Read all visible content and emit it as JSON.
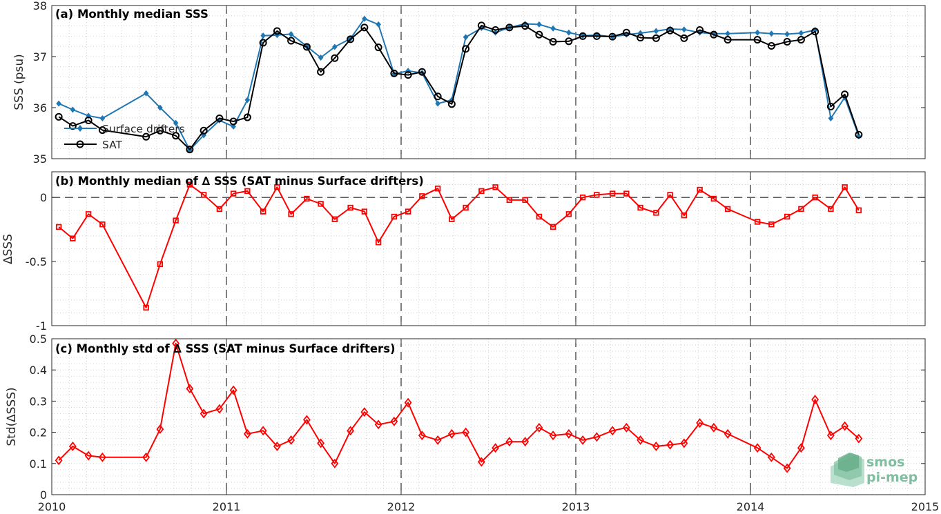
{
  "chart_data": [
    {
      "type": "line",
      "title": "(a) Monthly median SSS",
      "ylabel": "SSS (psu)",
      "xlim": [
        2010,
        2015
      ],
      "ylim": [
        35,
        38
      ],
      "yticks": [
        35,
        36,
        37,
        38
      ],
      "ytick_labels": [
        "35",
        "36",
        "37",
        "38"
      ],
      "grid": "dotted minor",
      "legend_placement": "left-middle",
      "series": [
        {
          "name": "Surface drifters",
          "color": "#1f77b4",
          "marker": "diamond-filled",
          "x": [
            2010.04,
            2010.12,
            2010.21,
            2010.29,
            2010.54,
            2010.62,
            2010.71,
            2010.79,
            2010.87,
            2010.96,
            2011.04,
            2011.12,
            2011.21,
            2011.29,
            2011.37,
            2011.46,
            2011.54,
            2011.62,
            2011.71,
            2011.79,
            2011.87,
            2011.96,
            2012.04,
            2012.12,
            2012.21,
            2012.29,
            2012.37,
            2012.46,
            2012.54,
            2012.62,
            2012.71,
            2012.79,
            2012.87,
            2012.96,
            2013.04,
            2013.12,
            2013.21,
            2013.29,
            2013.37,
            2013.46,
            2013.54,
            2013.62,
            2013.71,
            2013.79,
            2013.87,
            2014.04,
            2014.12,
            2014.21,
            2014.29,
            2014.37,
            2014.46,
            2014.54,
            2014.62
          ],
          "y": [
            36.08,
            35.96,
            35.84,
            35.79,
            36.28,
            36.0,
            35.7,
            35.17,
            35.46,
            35.75,
            35.63,
            36.15,
            37.41,
            37.42,
            37.44,
            37.2,
            36.98,
            37.19,
            37.35,
            37.74,
            37.63,
            36.66,
            36.72,
            36.68,
            36.08,
            36.15,
            37.38,
            37.56,
            37.47,
            37.57,
            37.64,
            37.63,
            37.55,
            37.47,
            37.41,
            37.42,
            37.39,
            37.43,
            37.46,
            37.5,
            37.54,
            37.53,
            37.47,
            37.45,
            37.45,
            37.47,
            37.45,
            37.44,
            37.46,
            37.52,
            35.79,
            36.2,
            35.44
          ]
        },
        {
          "name": "SAT",
          "color": "#000000",
          "marker": "circle-open",
          "x": [
            2010.04,
            2010.12,
            2010.21,
            2010.29,
            2010.54,
            2010.62,
            2010.71,
            2010.79,
            2010.87,
            2010.96,
            2011.04,
            2011.12,
            2011.21,
            2011.29,
            2011.37,
            2011.46,
            2011.54,
            2011.62,
            2011.71,
            2011.79,
            2011.87,
            2011.96,
            2012.04,
            2012.12,
            2012.21,
            2012.29,
            2012.37,
            2012.46,
            2012.54,
            2012.62,
            2012.71,
            2012.79,
            2012.87,
            2012.96,
            2013.04,
            2013.12,
            2013.21,
            2013.29,
            2013.37,
            2013.46,
            2013.54,
            2013.62,
            2013.71,
            2013.79,
            2013.87,
            2014.04,
            2014.12,
            2014.21,
            2014.29,
            2014.37,
            2014.46,
            2014.54,
            2014.62
          ],
          "y": [
            35.82,
            35.64,
            35.75,
            35.56,
            35.43,
            35.55,
            35.45,
            35.18,
            35.55,
            35.79,
            35.73,
            35.81,
            37.27,
            37.5,
            37.31,
            37.19,
            36.7,
            36.97,
            37.34,
            37.57,
            37.18,
            36.67,
            36.64,
            36.7,
            36.22,
            36.07,
            37.15,
            37.61,
            37.52,
            37.57,
            37.6,
            37.43,
            37.29,
            37.3,
            37.4,
            37.4,
            37.39,
            37.47,
            37.37,
            37.36,
            37.51,
            37.36,
            37.52,
            37.43,
            37.33,
            37.33,
            37.21,
            37.29,
            37.33,
            37.49,
            36.02,
            36.26,
            35.47
          ]
        }
      ]
    },
    {
      "type": "line",
      "title": "(b) Monthly median of ∆ SSS (SAT minus Surface drifters)",
      "ylabel": "∆SSS",
      "xlim": [
        2010,
        2015
      ],
      "ylim": [
        -1,
        0.2
      ],
      "yticks": [
        -1,
        -0.5,
        0
      ],
      "ytick_labels": [
        "-1",
        "-0.5",
        "0"
      ],
      "grid": "dotted minor",
      "reference_line": 0,
      "series": [
        {
          "color": "#ff0000",
          "marker": "square-open",
          "x": [
            2010.04,
            2010.12,
            2010.21,
            2010.29,
            2010.54,
            2010.62,
            2010.71,
            2010.79,
            2010.87,
            2010.96,
            2011.04,
            2011.12,
            2011.21,
            2011.29,
            2011.37,
            2011.46,
            2011.54,
            2011.62,
            2011.71,
            2011.79,
            2011.87,
            2011.96,
            2012.04,
            2012.12,
            2012.21,
            2012.29,
            2012.37,
            2012.46,
            2012.54,
            2012.62,
            2012.71,
            2012.79,
            2012.87,
            2012.96,
            2013.04,
            2013.12,
            2013.21,
            2013.29,
            2013.37,
            2013.46,
            2013.54,
            2013.62,
            2013.71,
            2013.79,
            2013.87,
            2014.04,
            2014.12,
            2014.21,
            2014.29,
            2014.37,
            2014.46,
            2014.54,
            2014.62
          ],
          "y": [
            -0.23,
            -0.32,
            -0.13,
            -0.21,
            -0.86,
            -0.52,
            -0.18,
            0.1,
            0.02,
            -0.09,
            0.03,
            0.05,
            -0.11,
            0.08,
            -0.13,
            -0.01,
            -0.05,
            -0.17,
            -0.08,
            -0.11,
            -0.35,
            -0.15,
            -0.11,
            0.01,
            0.07,
            -0.17,
            -0.08,
            0.05,
            0.08,
            -0.02,
            -0.02,
            -0.15,
            -0.23,
            -0.13,
            0.0,
            0.02,
            0.03,
            0.03,
            -0.08,
            -0.12,
            0.02,
            -0.14,
            0.06,
            -0.01,
            -0.09,
            -0.19,
            -0.21,
            -0.15,
            -0.09,
            0.0,
            -0.09,
            0.08,
            -0.1
          ]
        }
      ]
    },
    {
      "type": "line",
      "title": "(c) Monthly std of ∆ SSS (SAT minus Surface drifters)",
      "ylabel": "Std(∆SSS)",
      "xlim": [
        2010,
        2015
      ],
      "ylim": [
        0,
        0.5
      ],
      "yticks": [
        0,
        0.1,
        0.2,
        0.3,
        0.4,
        0.5
      ],
      "ytick_labels": [
        "0",
        "0.1",
        "0.2",
        "0.3",
        "0.4",
        "0.5"
      ],
      "xticks": [
        2010,
        2011,
        2012,
        2013,
        2014,
        2015
      ],
      "xtick_labels": [
        "2010",
        "2011",
        "2012",
        "2013",
        "2014",
        "2015"
      ],
      "grid": "dotted minor",
      "series": [
        {
          "color": "#ff0000",
          "marker": "diamond-open",
          "x": [
            2010.04,
            2010.12,
            2010.21,
            2010.29,
            2010.54,
            2010.62,
            2010.71,
            2010.79,
            2010.87,
            2010.96,
            2011.04,
            2011.12,
            2011.21,
            2011.29,
            2011.37,
            2011.46,
            2011.54,
            2011.62,
            2011.71,
            2011.79,
            2011.87,
            2011.96,
            2012.04,
            2012.12,
            2012.21,
            2012.29,
            2012.37,
            2012.46,
            2012.54,
            2012.62,
            2012.71,
            2012.79,
            2012.87,
            2012.96,
            2013.04,
            2013.12,
            2013.21,
            2013.29,
            2013.37,
            2013.46,
            2013.54,
            2013.62,
            2013.71,
            2013.79,
            2013.87,
            2014.04,
            2014.12,
            2014.21,
            2014.29,
            2014.37,
            2014.46,
            2014.54,
            2014.62
          ],
          "y": [
            0.11,
            0.155,
            0.125,
            0.12,
            0.12,
            0.21,
            0.485,
            0.34,
            0.26,
            0.275,
            0.335,
            0.195,
            0.205,
            0.155,
            0.175,
            0.24,
            0.165,
            0.1,
            0.205,
            0.265,
            0.225,
            0.235,
            0.295,
            0.19,
            0.175,
            0.195,
            0.2,
            0.105,
            0.15,
            0.17,
            0.17,
            0.215,
            0.19,
            0.195,
            0.175,
            0.185,
            0.205,
            0.215,
            0.175,
            0.155,
            0.16,
            0.165,
            0.23,
            0.215,
            0.195,
            0.15,
            0.12,
            0.085,
            0.15,
            0.305,
            0.19,
            0.22,
            0.18
          ]
        }
      ]
    }
  ],
  "legend": {
    "items": [
      "Surface drifters",
      "SAT"
    ]
  },
  "logo": {
    "line1": "smos",
    "line2": "pi-mep"
  },
  "colors": {
    "drifters": "#1f77b4",
    "sat": "#000000",
    "delta": "#ff0000",
    "logo": "#7fbf9f"
  }
}
